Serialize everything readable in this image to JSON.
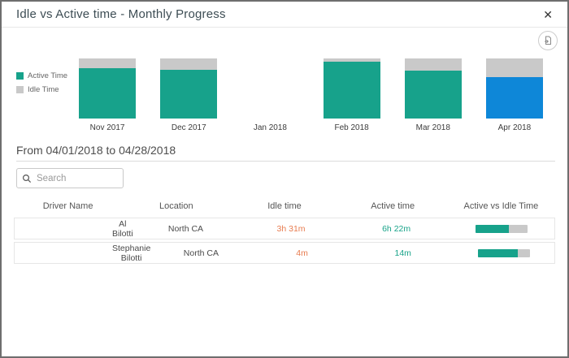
{
  "modal": {
    "title": "Idle vs Active time - Monthly Progress",
    "close_label": "✕"
  },
  "chart_data": {
    "type": "bar",
    "stacked": "percent",
    "title": "Idle vs Active time - Monthly Progress",
    "categories": [
      "Nov 2017",
      "Dec 2017",
      "Jan 2018",
      "Feb 2018",
      "Mar 2018",
      "Apr 2018"
    ],
    "series": [
      {
        "name": "Active Time",
        "color": "#17a28b",
        "values": [
          84,
          81,
          null,
          94,
          80,
          69
        ]
      },
      {
        "name": "Idle Time",
        "color": "#c9c9c9",
        "values": [
          16,
          19,
          null,
          6,
          20,
          31
        ]
      }
    ],
    "highlight": {
      "category": "Apr 2018",
      "active_color": "#0e87d8"
    },
    "legend_position": "left",
    "ylim": [
      0,
      100
    ]
  },
  "period": {
    "label": "From 04/01/2018 to 04/28/2018"
  },
  "search": {
    "placeholder": "Search"
  },
  "table": {
    "columns": [
      "Driver Name",
      "Location",
      "Idle time",
      "Active time",
      "Active vs Idle Time"
    ],
    "rows": [
      {
        "driver": "Al Bilotti",
        "location": "North CA",
        "idle": "3h 31m",
        "active": "6h 22m",
        "active_pct": 64
      },
      {
        "driver": "Stephanie Bilotti",
        "location": "North CA",
        "idle": "4m",
        "active": "14m",
        "active_pct": 76
      }
    ]
  },
  "colors": {
    "active": "#17a28b",
    "idle": "#c9c9c9",
    "highlight_blue": "#0e87d8",
    "idle_text": "#e87c50",
    "active_text": "#18a389"
  }
}
